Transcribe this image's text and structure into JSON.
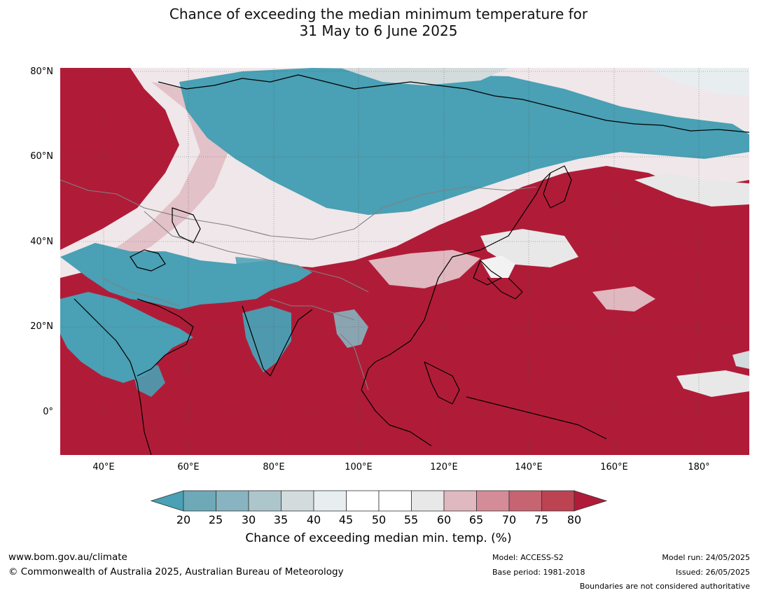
{
  "title_line1": "Chance of exceeding the median minimum temperature for",
  "title_line2": "31 May to 6 June 2025",
  "map": {
    "lat_labels": [
      "80°N",
      "60°N",
      "40°N",
      "20°N",
      "0°"
    ],
    "lon_labels": [
      "40°E",
      "60°E",
      "80°E",
      "100°E",
      "120°E",
      "140°E",
      "160°E",
      "180°"
    ],
    "colors": {
      "below": "#4aa0b4",
      "above": "#b01c38",
      "mid": "#ffffff",
      "coast": "#000000",
      "border": "#808080",
      "grid": "#444444"
    }
  },
  "colorbar": {
    "ticks": [
      "20",
      "25",
      "30",
      "35",
      "40",
      "45",
      "50",
      "55",
      "60",
      "65",
      "70",
      "75",
      "80"
    ],
    "colors": [
      "#4aa0b4",
      "#6ea9b8",
      "#87b4c0",
      "#adc6cc",
      "#d3dbdd",
      "#e8eef0",
      "#ffffff",
      "#ffffff",
      "#e8e8e8",
      "#e0b8bf",
      "#d48c98",
      "#c66472",
      "#bb4352",
      "#b01c38"
    ],
    "label": "Chance of exceeding median min. temp. (%)"
  },
  "footer": {
    "url": "www.bom.gov.au/climate",
    "copyright": "© Commonwealth of Australia 2025, Australian Bureau of Meteorology",
    "model": "Model: ACCESS-S2",
    "base_period": "Base period: 1981-2018",
    "model_run": "Model run: 24/05/2025",
    "issued": "Issued: 26/05/2025",
    "disclaimer": "Boundaries are not considered authoritative"
  }
}
